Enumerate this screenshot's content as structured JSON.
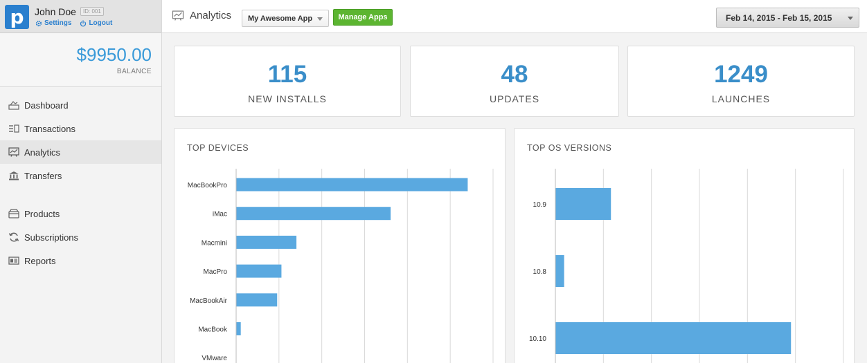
{
  "user": {
    "name": "John Doe",
    "id_label": "ID: 001",
    "settings_label": "Settings",
    "logout_label": "Logout",
    "logo_letter": "p"
  },
  "balance": {
    "value": "$9950.00",
    "label": "BALANCE"
  },
  "nav": {
    "items": [
      {
        "label": "Dashboard",
        "icon": "dashboard-icon"
      },
      {
        "label": "Transactions",
        "icon": "transactions-icon"
      },
      {
        "label": "Analytics",
        "icon": "analytics-icon",
        "active": true
      },
      {
        "label": "Transfers",
        "icon": "bank-icon"
      },
      {
        "label": "Products",
        "icon": "products-icon"
      },
      {
        "label": "Subscriptions",
        "icon": "refresh-icon"
      },
      {
        "label": "Reports",
        "icon": "reports-icon"
      }
    ]
  },
  "header": {
    "title": "Analytics",
    "app_select": "My Awesome App",
    "manage_label": "Manage Apps",
    "date_range": "Feb 14, 2015 - Feb 15, 2015"
  },
  "stats": [
    {
      "value": "115",
      "label": "NEW INSTALLS"
    },
    {
      "value": "48",
      "label": "UPDATES"
    },
    {
      "value": "1249",
      "label": "LAUNCHES"
    }
  ],
  "colors": {
    "accent": "#3a8ec9",
    "bar": "#5aa9e0",
    "button_green": "#5cb531",
    "logo": "#2a7fce"
  },
  "chart_data": [
    {
      "type": "bar",
      "orientation": "horizontal",
      "title": "TOP DEVICES",
      "categories": [
        "MacBookPro",
        "iMac",
        "Macmini",
        "MacPro",
        "MacBookAir",
        "MacBook",
        "VMware"
      ],
      "values": [
        54,
        36,
        14,
        10.5,
        9.5,
        1,
        0
      ],
      "xlim": [
        0,
        60
      ],
      "grid": true
    },
    {
      "type": "bar",
      "orientation": "horizontal",
      "title": "TOP OS VERSIONS",
      "categories": [
        "10.9",
        "10.8",
        "10.10"
      ],
      "values": [
        23,
        3.5,
        98
      ],
      "xlim": [
        0,
        120
      ],
      "grid": true
    }
  ]
}
